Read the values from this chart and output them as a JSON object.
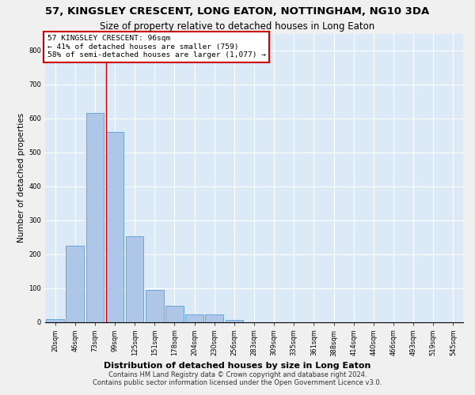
{
  "title": "57, KINGSLEY CRESCENT, LONG EATON, NOTTINGHAM, NG10 3DA",
  "subtitle": "Size of property relative to detached houses in Long Eaton",
  "xlabel": "Distribution of detached houses by size in Long Eaton",
  "ylabel": "Number of detached properties",
  "footer_line1": "Contains HM Land Registry data © Crown copyright and database right 2024.",
  "footer_line2": "Contains public sector information licensed under the Open Government Licence v3.0.",
  "bar_labels": [
    "20sqm",
    "46sqm",
    "73sqm",
    "99sqm",
    "125sqm",
    "151sqm",
    "178sqm",
    "204sqm",
    "230sqm",
    "256sqm",
    "283sqm",
    "309sqm",
    "335sqm",
    "361sqm",
    "388sqm",
    "414sqm",
    "440sqm",
    "466sqm",
    "493sqm",
    "519sqm",
    "545sqm"
  ],
  "bar_values": [
    8,
    225,
    617,
    560,
    252,
    95,
    48,
    22,
    22,
    5,
    0,
    0,
    0,
    0,
    0,
    0,
    0,
    0,
    0,
    0,
    0
  ],
  "bar_color": "#aec6e8",
  "bar_edge_color": "#5a9fd4",
  "vline_x": 2.575,
  "property_line_label": "57 KINGSLEY CRESCENT: 96sqm",
  "annotation_line1": "← 41% of detached houses are smaller (759)",
  "annotation_line2": "58% of semi-detached houses are larger (1,077) →",
  "annotation_box_color": "#ffffff",
  "annotation_box_edge": "#cc0000",
  "vline_color": "#cc0000",
  "ylim": [
    0,
    850
  ],
  "yticks": [
    0,
    100,
    200,
    300,
    400,
    500,
    600,
    700,
    800
  ],
  "background_color": "#dce9f7",
  "grid_color": "#ffffff",
  "title_fontsize": 9.5,
  "subtitle_fontsize": 8.5,
  "ylabel_fontsize": 7.5,
  "tick_fontsize": 6,
  "footer_fontsize": 6,
  "xlabel_fontsize": 8
}
